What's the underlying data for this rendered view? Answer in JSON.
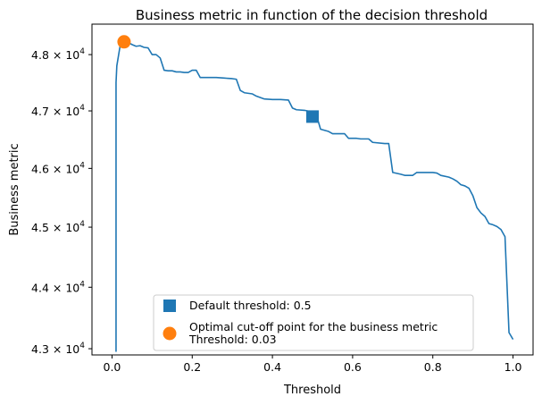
{
  "chart_data": {
    "type": "line",
    "title": "Business metric in function of the decision threshold",
    "xlabel": "Threshold",
    "ylabel": "Business metric",
    "xlim": [
      -0.05,
      1.05
    ],
    "ylim": [
      42900,
      48550
    ],
    "yscale": "log",
    "grid": false,
    "legend_placement": "bottom-center",
    "xticks": [
      0.0,
      0.2,
      0.4,
      0.6,
      0.8,
      1.0
    ],
    "xtick_labels": [
      "0.0",
      "0.2",
      "0.4",
      "0.6",
      "0.8",
      "1.0"
    ],
    "yticks": [
      43000,
      44000,
      45000,
      46000,
      47000,
      48000
    ],
    "ytick_labels": [
      {
        "mantissa": "4.3",
        "exp": "4"
      },
      {
        "mantissa": "4.4",
        "exp": "4"
      },
      {
        "mantissa": "4.5",
        "exp": "4"
      },
      {
        "mantissa": "4.6",
        "exp": "4"
      },
      {
        "mantissa": "4.7",
        "exp": "4"
      },
      {
        "mantissa": "4.8",
        "exp": "4"
      }
    ],
    "series": [
      {
        "color": "#1f77b4",
        "x": [
          0.01,
          0.01,
          0.012,
          0.02,
          0.03,
          0.04,
          0.05,
          0.06,
          0.07,
          0.08,
          0.09,
          0.1,
          0.11,
          0.12,
          0.13,
          0.14,
          0.15,
          0.16,
          0.17,
          0.18,
          0.19,
          0.2,
          0.21,
          0.22,
          0.23,
          0.24,
          0.26,
          0.28,
          0.3,
          0.31,
          0.32,
          0.33,
          0.35,
          0.36,
          0.38,
          0.4,
          0.42,
          0.44,
          0.45,
          0.46,
          0.48,
          0.5,
          0.51,
          0.52,
          0.54,
          0.55,
          0.58,
          0.59,
          0.61,
          0.62,
          0.64,
          0.65,
          0.68,
          0.69,
          0.7,
          0.72,
          0.73,
          0.75,
          0.76,
          0.78,
          0.8,
          0.81,
          0.82,
          0.84,
          0.85,
          0.86,
          0.87,
          0.88,
          0.89,
          0.9,
          0.91,
          0.92,
          0.93,
          0.94,
          0.95,
          0.96,
          0.97,
          0.98,
          0.99,
          1.0
        ],
        "y": [
          42950,
          47500,
          47800,
          48150,
          48200,
          48220,
          48180,
          48150,
          48160,
          48130,
          48120,
          48000,
          48000,
          47940,
          47720,
          47710,
          47710,
          47690,
          47690,
          47680,
          47680,
          47720,
          47720,
          47590,
          47590,
          47590,
          47590,
          47580,
          47570,
          47560,
          47360,
          47320,
          47300,
          47260,
          47210,
          47200,
          47200,
          47190,
          47050,
          47020,
          47010,
          46980,
          46920,
          46680,
          46640,
          46600,
          46600,
          46520,
          46520,
          46510,
          46510,
          46450,
          46430,
          46430,
          45930,
          45900,
          45880,
          45880,
          45930,
          45930,
          45930,
          45920,
          45880,
          45850,
          45820,
          45780,
          45720,
          45700,
          45660,
          45530,
          45330,
          45240,
          45180,
          45060,
          45040,
          45010,
          44960,
          44840,
          43260,
          43150
        ]
      }
    ],
    "markers": [
      {
        "label": "Default threshold: 0.5",
        "x": 0.5,
        "y": 46900,
        "shape": "square",
        "color": "#1f77b4"
      },
      {
        "label": "Optimal cut-off point for the business metric\nThreshold: 0.03",
        "x": 0.03,
        "y": 48230,
        "shape": "circle",
        "color": "#ff7f0e"
      }
    ]
  }
}
